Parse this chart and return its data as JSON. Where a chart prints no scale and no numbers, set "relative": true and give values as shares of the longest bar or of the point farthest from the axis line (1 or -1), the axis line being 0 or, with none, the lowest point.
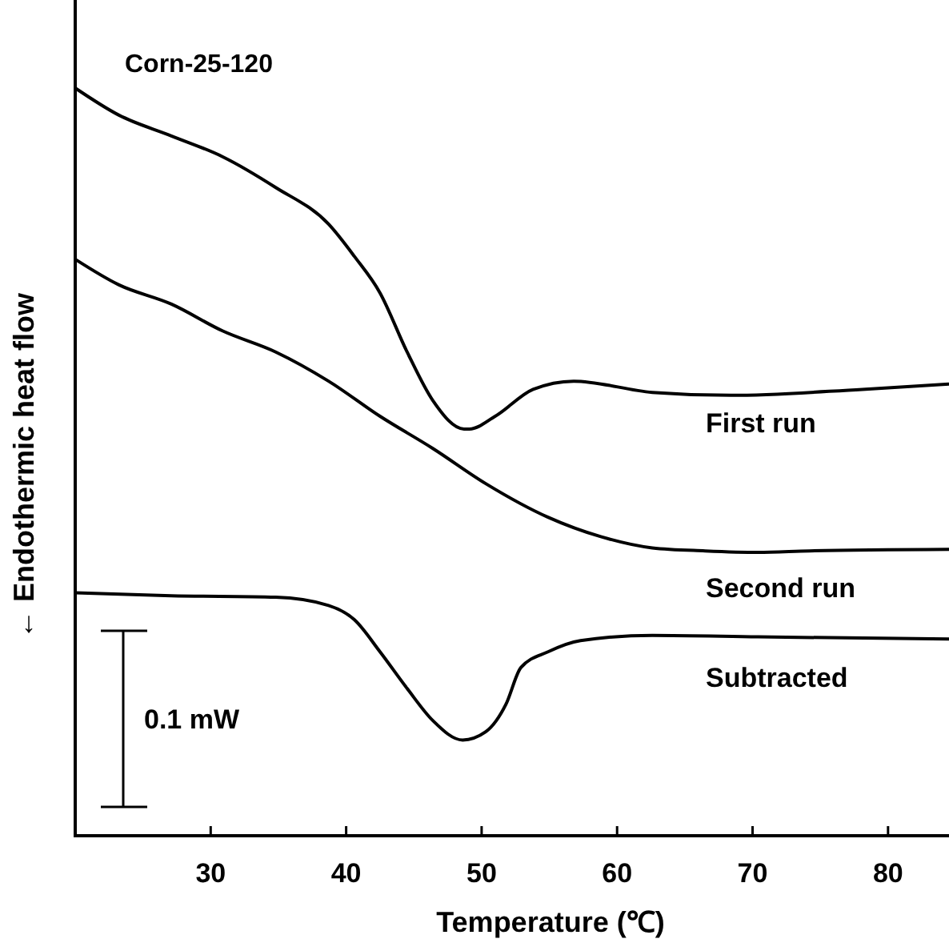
{
  "chart_data": {
    "type": "line",
    "title": "Corn-25-120",
    "xlabel": "Temperature (℃)",
    "ylabel": "← Endothermic heat flow",
    "relative": true,
    "xlim": [
      20,
      84.5
    ],
    "xticks": [
      30,
      40,
      50,
      60,
      70,
      80
    ],
    "grid": false,
    "marker": "none",
    "line_style": "solid",
    "annotations": [
      "0.1 mW"
    ],
    "series": [
      {
        "name": "First run",
        "color": "#000000",
        "x": [
          20,
          23.2,
          27.1,
          30.9,
          34.8,
          38.7,
          40.6,
          42.5,
          44.5,
          46.4,
          48.7,
          49.1,
          51.0,
          53.8,
          56.8,
          62.6,
          68.4,
          78.1,
          84.5
        ],
        "values": [
          1.0,
          0.964,
          0.936,
          0.908,
          0.867,
          0.818,
          0.775,
          0.726,
          0.647,
          0.582,
          0.544,
          0.544,
          0.561,
          0.597,
          0.608,
          0.593,
          0.589,
          0.597,
          0.604
        ]
      },
      {
        "name": "Second run",
        "color": "#000000",
        "x": [
          20,
          23.2,
          27.1,
          30.9,
          34.8,
          38.7,
          42.5,
          46.4,
          50.3,
          54.9,
          58.8,
          62.6,
          66.5,
          70.4,
          74.2,
          84.5
        ],
        "values": [
          0.771,
          0.737,
          0.711,
          0.675,
          0.647,
          0.608,
          0.561,
          0.518,
          0.471,
          0.426,
          0.4,
          0.385,
          0.381,
          0.379,
          0.381,
          0.383
        ]
      },
      {
        "name": "Subtracted",
        "color": "#000000",
        "x": [
          20,
          27.1,
          34.8,
          38.7,
          40.6,
          42.5,
          44.5,
          46.4,
          48.6,
          50.3,
          51.8,
          52.9,
          54.9,
          57.3,
          62.6,
          70.4,
          84.5
        ],
        "values": [
          0.325,
          0.321,
          0.319,
          0.308,
          0.289,
          0.246,
          0.197,
          0.154,
          0.128,
          0.139,
          0.176,
          0.225,
          0.246,
          0.261,
          0.268,
          0.266,
          0.263
        ]
      }
    ]
  }
}
